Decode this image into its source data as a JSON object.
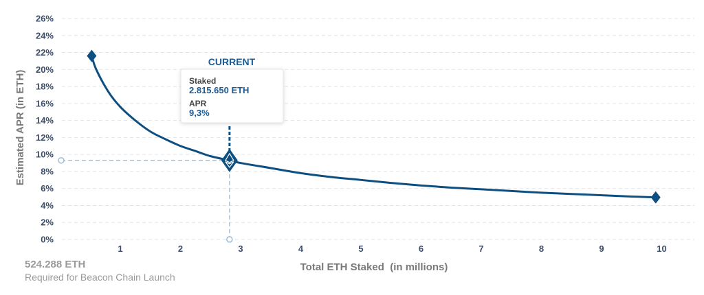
{
  "chart_data": {
    "type": "line",
    "xlabel": "Total ETH Staked  (in millions)",
    "ylabel": "Estimated APR (in ETH)",
    "x_ticks": [
      "1",
      "2",
      "3",
      "4",
      "5",
      "6",
      "7",
      "8",
      "9",
      "10"
    ],
    "y_ticks": [
      "0%",
      "2%",
      "4%",
      "6%",
      "8%",
      "10%",
      "12%",
      "14%",
      "16%",
      "18%",
      "20%",
      "22%",
      "24%",
      "26%"
    ],
    "xlim": [
      0,
      10.6
    ],
    "ylim": [
      0,
      26
    ],
    "grid": true,
    "series": [
      {
        "x": [
          0.524288,
          0.6,
          0.8,
          1.0,
          1.25,
          1.5,
          1.75,
          2.0,
          2.25,
          2.5,
          2.81565,
          3.0,
          3.5,
          4.0,
          4.5,
          5.0,
          5.5,
          6.0,
          6.5,
          7.0,
          7.5,
          8.0,
          8.5,
          9.0,
          9.5,
          9.9
        ],
        "y": [
          21.6,
          20.0,
          17.4,
          15.6,
          14.0,
          12.7,
          11.8,
          11.0,
          10.4,
          9.8,
          9.3,
          9.0,
          8.4,
          7.8,
          7.35,
          7.0,
          6.65,
          6.35,
          6.1,
          5.9,
          5.7,
          5.5,
          5.35,
          5.2,
          5.05,
          4.95
        ]
      }
    ],
    "current": {
      "title": "CURRENT",
      "staked_label": "Staked",
      "staked_value": "2.815.650 ETH",
      "apr_label": "APR",
      "apr_value": "9,3%",
      "x": 2.81565,
      "y": 9.3
    },
    "launch_note": {
      "value": "524.288 ETH",
      "label": "Required for Beacon Chain Launch"
    },
    "colors": {
      "line": "#0e4f82",
      "grid": "#e3e3e3",
      "guide": "#9dbbd6"
    }
  }
}
